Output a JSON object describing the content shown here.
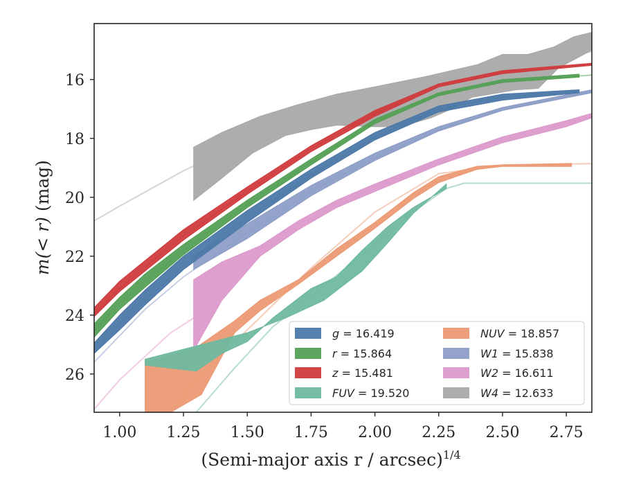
{
  "chart_data": {
    "type": "area",
    "xlabel": "(Semi-major axis r / arcsec)",
    "xlabel_power": "1/4",
    "ylabel_prefix": "m(< r) ",
    "ylabel_suffix": "(mag)",
    "xlim": [
      0.9,
      2.85
    ],
    "ylim": [
      27.3,
      14.1
    ],
    "y_inverted": true,
    "grid": false,
    "legend_position": "lower-right",
    "xticks": [
      1.0,
      1.25,
      1.5,
      1.75,
      2.0,
      2.25,
      2.5,
      2.75
    ],
    "xtick_labels": [
      "1.00",
      "1.25",
      "1.50",
      "1.75",
      "2.00",
      "2.25",
      "2.50",
      "2.75"
    ],
    "yticks": [
      16,
      18,
      20,
      22,
      24,
      26
    ],
    "ytick_labels": [
      "16",
      "18",
      "20",
      "22",
      "24",
      "26"
    ],
    "series": [
      {
        "name": "W4",
        "label_var": "W4",
        "label_val": "12.633",
        "italic": true,
        "color": "#a9a9a9",
        "model": [
          [
            0.9,
            20.8
          ],
          [
            1.0,
            20.3
          ],
          [
            1.25,
            19.1
          ],
          [
            1.5,
            18.1
          ],
          [
            1.75,
            17.3
          ],
          [
            2.0,
            16.7
          ],
          [
            2.25,
            16.15
          ],
          [
            2.5,
            15.65
          ],
          [
            2.85,
            15.05
          ]
        ],
        "upper": [
          [
            1.29,
            18.3
          ],
          [
            1.4,
            17.8
          ],
          [
            1.55,
            17.25
          ],
          [
            1.7,
            16.85
          ],
          [
            1.85,
            16.5
          ],
          [
            2.0,
            16.25
          ],
          [
            2.2,
            15.9
          ],
          [
            2.4,
            15.5
          ],
          [
            2.5,
            15.15
          ],
          [
            2.6,
            15.15
          ],
          [
            2.7,
            14.9
          ],
          [
            2.78,
            14.55
          ],
          [
            2.85,
            14.4
          ]
        ],
        "lower": [
          [
            2.85,
            15.0
          ],
          [
            2.72,
            15.6
          ],
          [
            2.64,
            16.3
          ],
          [
            2.55,
            16.35
          ],
          [
            2.45,
            16.5
          ],
          [
            2.38,
            16.6
          ],
          [
            2.3,
            17.0
          ],
          [
            2.22,
            17.3
          ],
          [
            2.1,
            17.6
          ],
          [
            2.0,
            17.6
          ],
          [
            1.85,
            17.55
          ],
          [
            1.75,
            17.7
          ],
          [
            1.65,
            17.9
          ],
          [
            1.52,
            18.5
          ],
          [
            1.4,
            19.35
          ],
          [
            1.29,
            20.1
          ]
        ]
      },
      {
        "name": "W1",
        "label_var": "W1",
        "label_val": "15.838",
        "italic": true,
        "color": "#8d9ec7",
        "model": [
          [
            0.9,
            25.6
          ],
          [
            1.0,
            24.7
          ],
          [
            1.1,
            23.8
          ],
          [
            1.25,
            22.7
          ],
          [
            1.5,
            21.2
          ],
          [
            1.75,
            19.8
          ],
          [
            2.0,
            18.65
          ],
          [
            2.25,
            17.7
          ],
          [
            2.5,
            17.0
          ],
          [
            2.75,
            16.6
          ],
          [
            2.85,
            16.4
          ]
        ],
        "upper": [
          [
            1.29,
            22.0
          ],
          [
            1.5,
            20.9
          ],
          [
            1.75,
            19.6
          ],
          [
            2.0,
            18.5
          ],
          [
            2.25,
            17.6
          ],
          [
            2.5,
            16.95
          ],
          [
            2.85,
            16.35
          ]
        ],
        "lower": [
          [
            2.85,
            16.45
          ],
          [
            2.5,
            17.05
          ],
          [
            2.25,
            17.75
          ],
          [
            2.0,
            18.75
          ],
          [
            1.75,
            19.95
          ],
          [
            1.5,
            21.4
          ],
          [
            1.29,
            22.45
          ]
        ]
      },
      {
        "name": "W2",
        "label_var": "W2",
        "label_val": "16.611",
        "italic": true,
        "color": "#dc9acb",
        "model": [
          [
            0.9,
            27.2
          ],
          [
            1.0,
            26.2
          ],
          [
            1.1,
            25.4
          ],
          [
            1.2,
            24.6
          ],
          [
            1.29,
            24.1
          ]
        ],
        "upper": [
          [
            1.29,
            22.8
          ],
          [
            1.4,
            22.2
          ],
          [
            1.55,
            21.65
          ],
          [
            1.7,
            20.8
          ],
          [
            1.85,
            20.1
          ],
          [
            2.0,
            19.55
          ],
          [
            2.25,
            18.7
          ],
          [
            2.5,
            17.95
          ],
          [
            2.75,
            17.4
          ],
          [
            2.85,
            17.15
          ]
        ],
        "lower": [
          [
            2.85,
            17.3
          ],
          [
            2.75,
            17.6
          ],
          [
            2.5,
            18.15
          ],
          [
            2.25,
            18.9
          ],
          [
            2.0,
            19.8
          ],
          [
            1.85,
            20.35
          ],
          [
            1.7,
            21.1
          ],
          [
            1.55,
            22.0
          ],
          [
            1.4,
            23.5
          ],
          [
            1.29,
            25.2
          ]
        ]
      },
      {
        "name": "g",
        "label_var": "g",
        "label_val": "16.419",
        "italic": true,
        "color": "#4c78a8",
        "model": [
          [
            0.9,
            25.3
          ],
          [
            1.0,
            24.3
          ],
          [
            1.25,
            22.3
          ],
          [
            1.5,
            20.7
          ],
          [
            1.75,
            19.25
          ],
          [
            2.0,
            17.95
          ],
          [
            2.25,
            17.0
          ],
          [
            2.5,
            16.6
          ],
          [
            2.8,
            16.4
          ]
        ],
        "upper": [
          [
            0.9,
            24.95
          ],
          [
            1.0,
            24.0
          ],
          [
            1.1,
            23.15
          ],
          [
            1.25,
            22.0
          ],
          [
            1.5,
            20.45
          ],
          [
            1.75,
            19.05
          ],
          [
            2.0,
            17.8
          ],
          [
            2.25,
            16.9
          ],
          [
            2.5,
            16.5
          ],
          [
            2.8,
            16.35
          ]
        ],
        "lower": [
          [
            2.8,
            16.45
          ],
          [
            2.5,
            16.7
          ],
          [
            2.25,
            17.1
          ],
          [
            2.0,
            18.05
          ],
          [
            1.75,
            19.35
          ],
          [
            1.5,
            20.85
          ],
          [
            1.25,
            22.45
          ],
          [
            1.1,
            23.65
          ],
          [
            1.0,
            24.5
          ],
          [
            0.9,
            25.3
          ]
        ]
      },
      {
        "name": "r",
        "label_var": "r",
        "label_val": "15.864",
        "italic": true,
        "color": "#55a056",
        "model": [
          [
            0.9,
            24.5
          ],
          [
            1.0,
            23.6
          ],
          [
            1.25,
            21.8
          ],
          [
            1.5,
            20.25
          ],
          [
            1.75,
            18.8
          ],
          [
            2.0,
            17.45
          ],
          [
            2.25,
            16.5
          ],
          [
            2.5,
            16.05
          ],
          [
            2.85,
            15.85
          ]
        ],
        "upper": [
          [
            0.9,
            24.3
          ],
          [
            1.0,
            23.4
          ],
          [
            1.1,
            22.6
          ],
          [
            1.25,
            21.6
          ],
          [
            1.5,
            20.1
          ],
          [
            1.75,
            18.7
          ],
          [
            2.0,
            17.35
          ],
          [
            2.25,
            16.45
          ],
          [
            2.5,
            16.0
          ],
          [
            2.8,
            15.82
          ]
        ],
        "lower": [
          [
            2.8,
            15.92
          ],
          [
            2.5,
            16.1
          ],
          [
            2.25,
            16.55
          ],
          [
            2.0,
            17.5
          ],
          [
            1.75,
            18.9
          ],
          [
            1.5,
            20.35
          ],
          [
            1.25,
            21.95
          ],
          [
            1.1,
            23.05
          ],
          [
            1.0,
            23.8
          ],
          [
            0.9,
            24.75
          ]
        ]
      },
      {
        "name": "z",
        "label_var": "z",
        "label_val": "15.481",
        "italic": true,
        "color": "#d03c3e",
        "model": [
          [
            0.9,
            24.0
          ],
          [
            1.0,
            23.1
          ],
          [
            1.25,
            21.3
          ],
          [
            1.5,
            19.8
          ],
          [
            1.75,
            18.35
          ],
          [
            2.0,
            17.15
          ],
          [
            2.25,
            16.2
          ],
          [
            2.5,
            15.75
          ],
          [
            2.85,
            15.48
          ]
        ],
        "upper": [
          [
            0.9,
            23.75
          ],
          [
            1.0,
            22.85
          ],
          [
            1.1,
            22.15
          ],
          [
            1.25,
            21.1
          ],
          [
            1.5,
            19.65
          ],
          [
            1.75,
            18.25
          ],
          [
            2.0,
            17.05
          ],
          [
            2.25,
            16.15
          ],
          [
            2.5,
            15.7
          ],
          [
            2.85,
            15.45
          ]
        ],
        "lower": [
          [
            2.85,
            15.52
          ],
          [
            2.5,
            15.8
          ],
          [
            2.25,
            16.25
          ],
          [
            2.0,
            17.25
          ],
          [
            1.75,
            18.45
          ],
          [
            1.5,
            19.9
          ],
          [
            1.25,
            21.45
          ],
          [
            1.1,
            22.5
          ],
          [
            1.0,
            23.2
          ],
          [
            0.9,
            24.05
          ]
        ]
      },
      {
        "name": "NUV",
        "label_var": "NUV",
        "label_val": "18.857",
        "italic": true,
        "color": "#ec9a74",
        "model": [
          [
            1.2,
            27.3
          ],
          [
            1.3,
            26.2
          ],
          [
            1.5,
            24.5
          ],
          [
            1.75,
            22.4
          ],
          [
            2.0,
            20.5
          ],
          [
            2.25,
            19.2
          ],
          [
            2.5,
            18.9
          ],
          [
            2.85,
            18.86
          ]
        ],
        "upper": [
          [
            1.1,
            25.6
          ],
          [
            1.3,
            25.1
          ],
          [
            1.45,
            24.2
          ],
          [
            1.55,
            23.5
          ],
          [
            1.7,
            22.8
          ],
          [
            1.85,
            21.75
          ],
          [
            2.0,
            20.85
          ],
          [
            2.15,
            19.85
          ],
          [
            2.25,
            19.3
          ],
          [
            2.4,
            18.95
          ],
          [
            2.5,
            18.9
          ],
          [
            2.77,
            18.85
          ]
        ],
        "lower": [
          [
            2.77,
            18.95
          ],
          [
            2.5,
            18.95
          ],
          [
            2.4,
            19.05
          ],
          [
            2.25,
            19.5
          ],
          [
            2.15,
            20.05
          ],
          [
            2.0,
            21.05
          ],
          [
            1.85,
            22.0
          ],
          [
            1.7,
            22.95
          ],
          [
            1.55,
            23.85
          ],
          [
            1.45,
            24.6
          ],
          [
            1.32,
            26.7
          ],
          [
            1.2,
            27.3
          ],
          [
            1.1,
            27.3
          ]
        ]
      },
      {
        "name": "FUV",
        "label_var": "FUV",
        "label_val": "19.520",
        "italic": true,
        "color": "#6fb99f",
        "model": [
          [
            1.3,
            27.3
          ],
          [
            1.45,
            25.8
          ],
          [
            1.6,
            24.4
          ],
          [
            1.8,
            23.0
          ],
          [
            2.0,
            21.6
          ],
          [
            2.15,
            20.5
          ],
          [
            2.28,
            19.7
          ],
          [
            2.35,
            19.52
          ],
          [
            2.85,
            19.52
          ]
        ],
        "upper": [
          [
            1.1,
            25.5
          ],
          [
            1.3,
            25.05
          ],
          [
            1.5,
            24.6
          ],
          [
            1.65,
            24.1
          ],
          [
            1.8,
            23.5
          ],
          [
            1.95,
            22.5
          ],
          [
            2.05,
            21.55
          ],
          [
            2.15,
            20.55
          ],
          [
            2.28,
            19.55
          ]
        ],
        "lower": [
          [
            2.28,
            19.7
          ],
          [
            2.15,
            20.35
          ],
          [
            2.05,
            21.0
          ],
          [
            1.95,
            21.8
          ],
          [
            1.85,
            22.7
          ],
          [
            1.75,
            23.1
          ],
          [
            1.6,
            24.1
          ],
          [
            1.5,
            24.9
          ],
          [
            1.4,
            25.3
          ],
          [
            1.3,
            25.9
          ],
          [
            1.1,
            25.7
          ]
        ]
      }
    ],
    "legend_columns": [
      [
        "g",
        "r",
        "z",
        "FUV"
      ],
      [
        "NUV",
        "W1",
        "W2",
        "W4"
      ]
    ]
  }
}
